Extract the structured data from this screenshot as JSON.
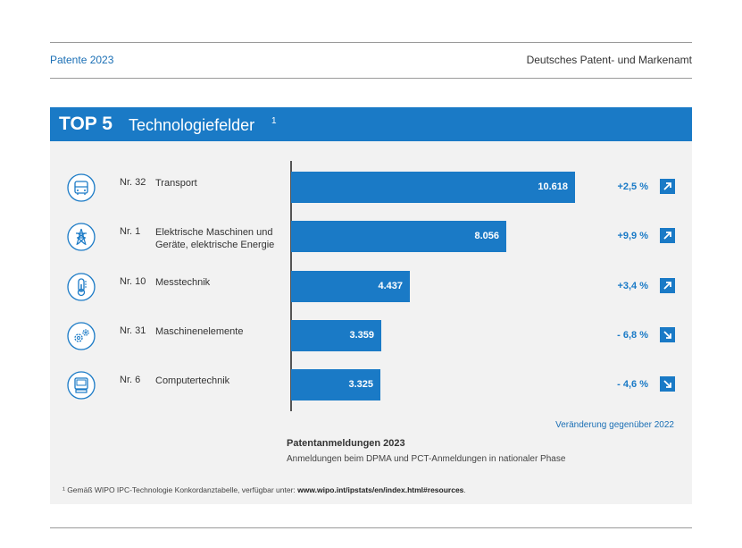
{
  "header": {
    "left": "Patente 2023",
    "right": "Deutsches Patent- und Markenamt"
  },
  "title": {
    "prefix": "TOP 5",
    "text": "Technologiefelder",
    "footnote_mark": "1"
  },
  "chart_data": {
    "type": "bar",
    "orientation": "horizontal",
    "title": "Patentanmeldungen 2023",
    "subtitle": "Anmeldungen beim DPMA und PCT-Anmeldungen in nationaler Phase",
    "categories": [
      "Transport",
      "Elektrische Maschinen und Geräte, elektrische Energie",
      "Messtechnik",
      "Maschinenelemente",
      "Computertechnik"
    ],
    "values": [
      10618,
      8056,
      4437,
      3359,
      3325
    ],
    "value_labels": [
      "10.618",
      "8.056",
      "4.437",
      "3.359",
      "3.325"
    ],
    "change_caption": "Veränderung gegenüber 2022",
    "bar_color": "#1a7ac6",
    "rows": [
      {
        "rank": "Nr. 32",
        "label": "Transport",
        "value_label": "10.618",
        "change": "+2,5 %",
        "direction": "up",
        "icon": "bus-icon"
      },
      {
        "rank": "Nr. 1",
        "label": "Elektrische Maschinen und Geräte, elektrische Energie",
        "value_label": "8.056",
        "change": "+9,9 %",
        "direction": "up",
        "icon": "power-pylon-icon"
      },
      {
        "rank": "Nr. 10",
        "label": "Messtechnik",
        "value_label": "4.437",
        "change": "+3,4 %",
        "direction": "up",
        "icon": "thermometer-icon"
      },
      {
        "rank": "Nr. 31",
        "label": "Maschinenelemente",
        "value_label": "3.359",
        "change": "- 6,8 %",
        "direction": "down",
        "icon": "gears-icon"
      },
      {
        "rank": "Nr. 6",
        "label": "Computertechnik",
        "value_label": "3.325",
        "change": "- 4,6 %",
        "direction": "down",
        "icon": "computer-icon"
      }
    ]
  },
  "footnote": {
    "text": "¹ Gemäß WIPO IPC-Technologie Konkordanztabelle, verfügbar unter: ",
    "link": "www.wipo.int/ipstats/en/index.html#resources",
    "end": "."
  }
}
